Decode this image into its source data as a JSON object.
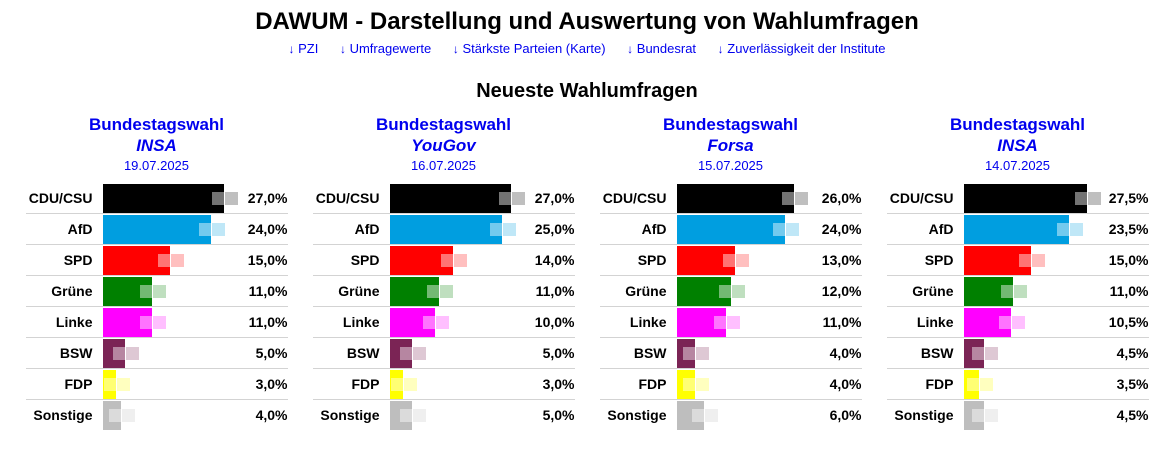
{
  "page_title": "DAWUM - Darstellung und Auswertung von Wahlumfragen",
  "nav": {
    "arrow": "↓",
    "links": [
      {
        "label": "PZI"
      },
      {
        "label": "Umfragewerte"
      },
      {
        "label": "Stärkste Parteien (Karte)"
      },
      {
        "label": "Bundesrat"
      },
      {
        "label": "Zuverlässigkeit der Institute"
      }
    ]
  },
  "section_title": "Neueste Wahlumfragen",
  "colors": {
    "link_blue": "#0000ee",
    "separator": "#d3d3d3",
    "party_colors": {
      "CDU/CSU": "#000000",
      "AfD": "#009ee0",
      "SPD": "#ff0000",
      "Grüne": "#008000",
      "Linke": "#ff00ff",
      "BSW": "#7b2455",
      "FDP": "#ffff00",
      "Sonstige": "#bebebe"
    }
  },
  "chart_data": [
    {
      "type": "bar",
      "title": "Bundestagswahl",
      "institute": "INSA",
      "date": "19.07.2025",
      "categories": [
        "CDU/CSU",
        "AfD",
        "SPD",
        "Grüne",
        "Linke",
        "BSW",
        "FDP",
        "Sonstige"
      ],
      "values": [
        27.0,
        24.0,
        15.0,
        11.0,
        11.0,
        5.0,
        3.0,
        4.0
      ],
      "value_labels": [
        "27,0%",
        "24,0%",
        "15,0%",
        "11,0%",
        "11,0%",
        "5,0%",
        "3,0%",
        "4,0%"
      ],
      "xlim": [
        0,
        30
      ],
      "grid": false,
      "legend": false
    },
    {
      "type": "bar",
      "title": "Bundestagswahl",
      "institute": "YouGov",
      "date": "16.07.2025",
      "categories": [
        "CDU/CSU",
        "AfD",
        "SPD",
        "Grüne",
        "Linke",
        "BSW",
        "FDP",
        "Sonstige"
      ],
      "values": [
        27.0,
        25.0,
        14.0,
        11.0,
        10.0,
        5.0,
        3.0,
        5.0
      ],
      "value_labels": [
        "27,0%",
        "25,0%",
        "14,0%",
        "11,0%",
        "10,0%",
        "5,0%",
        "3,0%",
        "5,0%"
      ],
      "xlim": [
        0,
        30
      ],
      "grid": false,
      "legend": false
    },
    {
      "type": "bar",
      "title": "Bundestagswahl",
      "institute": "Forsa",
      "date": "15.07.2025",
      "categories": [
        "CDU/CSU",
        "AfD",
        "SPD",
        "Grüne",
        "Linke",
        "BSW",
        "FDP",
        "Sonstige"
      ],
      "values": [
        26.0,
        24.0,
        13.0,
        12.0,
        11.0,
        4.0,
        4.0,
        6.0
      ],
      "value_labels": [
        "26,0%",
        "24,0%",
        "13,0%",
        "12,0%",
        "11,0%",
        "4,0%",
        "4,0%",
        "6,0%"
      ],
      "xlim": [
        0,
        30
      ],
      "grid": false,
      "legend": false
    },
    {
      "type": "bar",
      "title": "Bundestagswahl",
      "institute": "INSA",
      "date": "14.07.2025",
      "categories": [
        "CDU/CSU",
        "AfD",
        "SPD",
        "Grüne",
        "Linke",
        "BSW",
        "FDP",
        "Sonstige"
      ],
      "values": [
        27.5,
        23.5,
        15.0,
        11.0,
        10.5,
        4.5,
        3.5,
        4.5
      ],
      "value_labels": [
        "27,5%",
        "23,5%",
        "15,0%",
        "11,0%",
        "10,5%",
        "4,5%",
        "3,5%",
        "4,5%"
      ],
      "xlim": [
        0,
        30
      ],
      "grid": false,
      "legend": false
    }
  ]
}
